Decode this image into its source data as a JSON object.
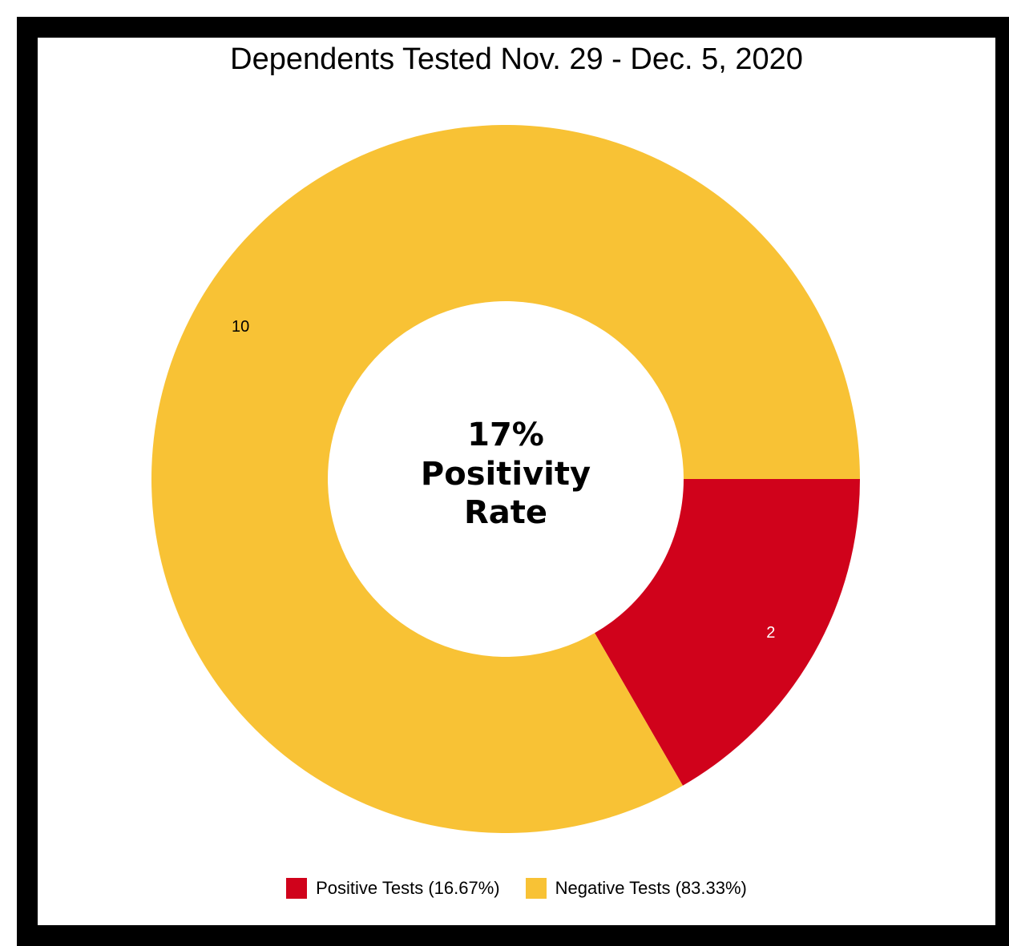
{
  "chart_data": {
    "type": "pie",
    "title": "Dependents Tested Nov. 29 - Dec. 5, 2020",
    "center_label": [
      "17%",
      "Positivity",
      "Rate"
    ],
    "slices": [
      {
        "name": "Positive Tests (16.67%)",
        "value": 2,
        "label": "2",
        "color": "#d0021b",
        "label_color": "#ffffff"
      },
      {
        "name": "Negative Tests (83.33%)",
        "value": 10,
        "label": "10",
        "color": "#f8c235",
        "label_color": "#000000"
      }
    ],
    "legend_position": "bottom",
    "donut": true
  }
}
